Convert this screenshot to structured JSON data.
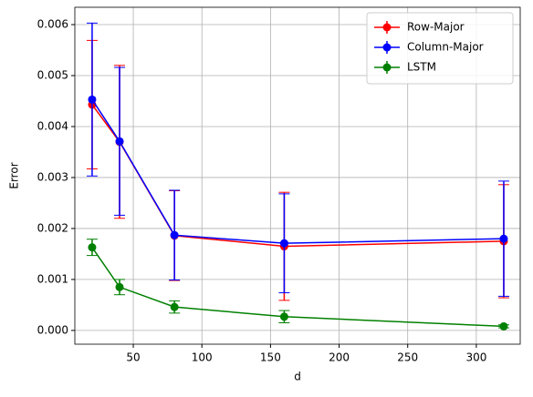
{
  "chart_data": {
    "type": "line",
    "x_label": "d",
    "y_label": "Error",
    "x": [
      20,
      40,
      80,
      160,
      320
    ],
    "series": [
      {
        "name": "Row-Major",
        "color": "#ff0000",
        "values": [
          0.00443,
          0.0037,
          0.00186,
          0.00165,
          0.00175
        ],
        "errors": [
          0.00126,
          0.0015,
          0.00088,
          0.00106,
          0.00111
        ]
      },
      {
        "name": "Column-Major",
        "color": "#0000ff",
        "values": [
          0.00453,
          0.00371,
          0.00187,
          0.00171,
          0.0018
        ],
        "errors": [
          0.0015,
          0.00145,
          0.00088,
          0.00097,
          0.00113
        ]
      },
      {
        "name": "LSTM",
        "color": "#008000",
        "values": [
          0.00163,
          0.00085,
          0.00046,
          0.00027,
          8e-05
        ],
        "errors": [
          0.00016,
          0.00015,
          0.00012,
          0.00012,
          3e-05
        ]
      }
    ],
    "xlim": [
      7.4,
      332
    ],
    "ylim": [
      -0.00027,
      0.00634
    ],
    "xticks": [
      50,
      100,
      150,
      200,
      250,
      300
    ],
    "yticks": [
      {
        "value": 0,
        "label": "0.000"
      },
      {
        "value": 0.001,
        "label": "0.001"
      },
      {
        "value": 0.002,
        "label": "0.002"
      },
      {
        "value": 0.003,
        "label": "0.003"
      },
      {
        "value": 0.004,
        "label": "0.004"
      },
      {
        "value": 0.005,
        "label": "0.005"
      },
      {
        "value": 0.006,
        "label": "0.006"
      }
    ],
    "grid": true,
    "legend": "upper right"
  }
}
